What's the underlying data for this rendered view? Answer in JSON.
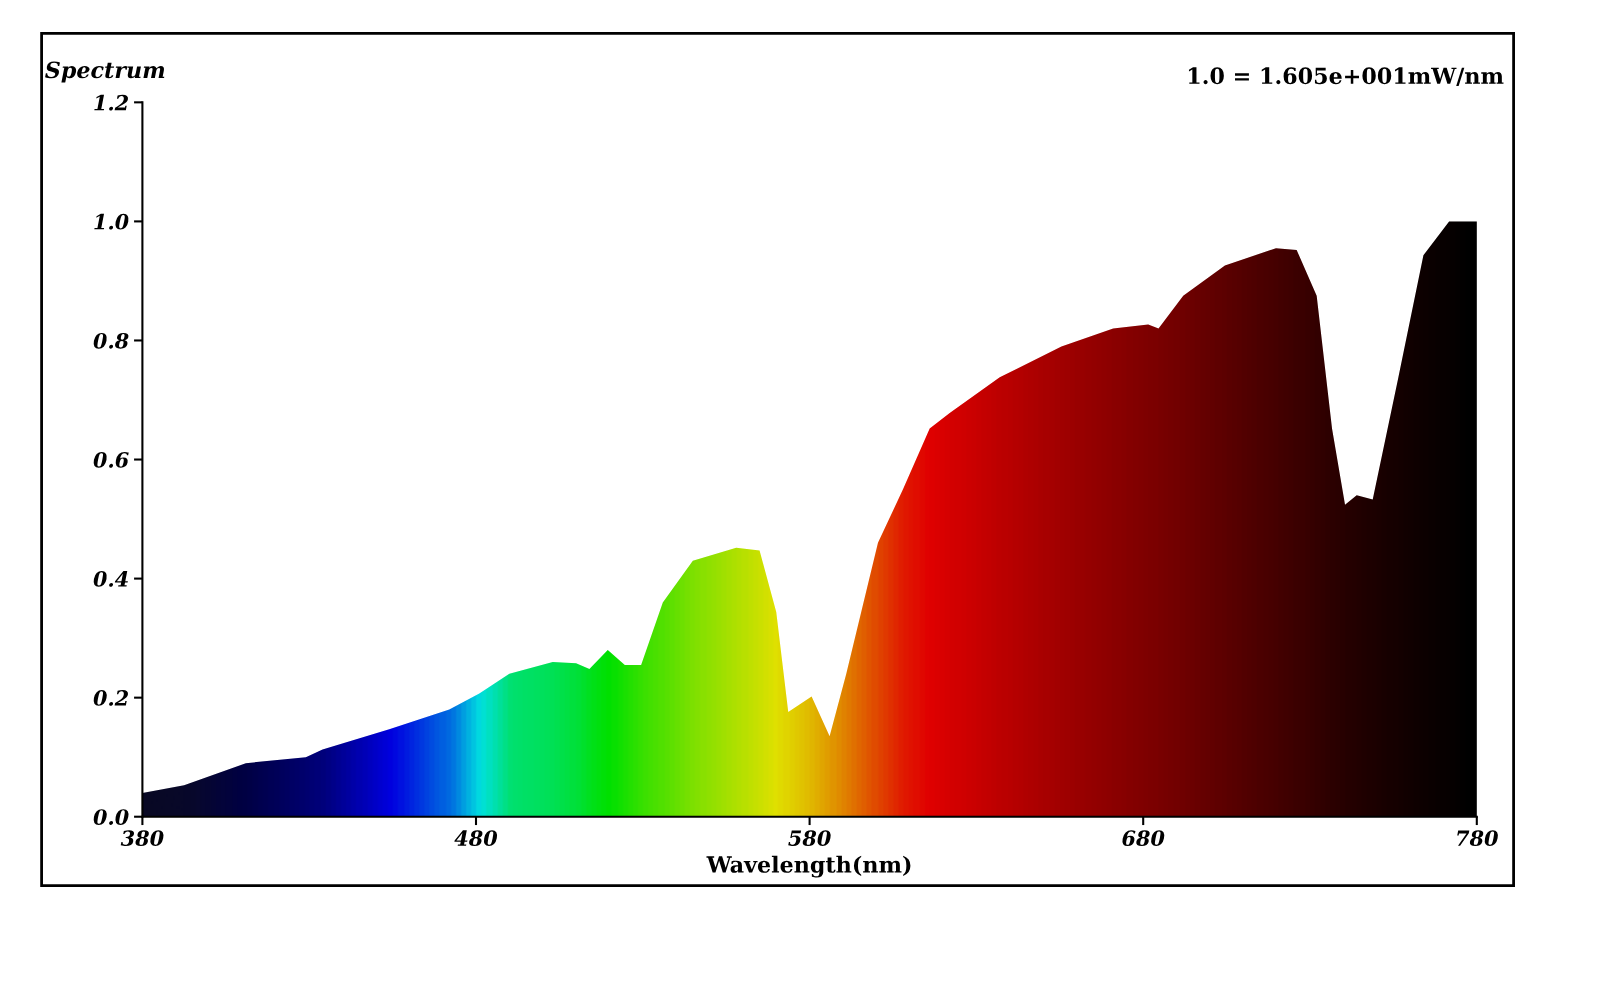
{
  "chart_data": {
    "type": "area",
    "ylabel": "Spectrum",
    "xlabel": "Wavelength(nm)",
    "annotations": [
      "1.0 = 1.605e+001mW/nm"
    ],
    "x": [
      380,
      392.5,
      411,
      429,
      434,
      454,
      472,
      481,
      490,
      503,
      510,
      514,
      519.5,
      524.6,
      529.5,
      536,
      545,
      558,
      565,
      570,
      573.6,
      580.6,
      586,
      591,
      600.5,
      608,
      616,
      622,
      637,
      655.5,
      671,
      681.5,
      684.6,
      692,
      704.5,
      719.8,
      726,
      732,
      736.6,
      740.5,
      744,
      748.8,
      756.5,
      764,
      771.7,
      780
    ],
    "series": [
      {
        "values": [
          0.04,
          0.053,
          0.09,
          0.1,
          0.113,
          0.147,
          0.18,
          0.207,
          0.24,
          0.26,
          0.258,
          0.248,
          0.28,
          0.255,
          0.255,
          0.36,
          0.43,
          0.452,
          0.447,
          0.344,
          0.176,
          0.202,
          0.135,
          0.24,
          0.46,
          0.55,
          0.652,
          0.678,
          0.738,
          0.79,
          0.82,
          0.827,
          0.82,
          0.875,
          0.926,
          0.955,
          0.952,
          0.875,
          0.652,
          0.524,
          0.54,
          0.533,
          0.738,
          0.943,
          1.0,
          1.0
        ],
        "colors": [
          "#0a0a2a",
          "#0a0a30",
          "#000050",
          "#000080",
          "#000090",
          "#0000ff",
          "#0080ff",
          "#00ffff",
          "#00ff80",
          "#00ff60",
          "#00ff40",
          "#00ff20",
          "#00ff00",
          "#20ff00",
          "#40ff00",
          "#60ff00",
          "#90ff00",
          "#c8ff00",
          "#e8ff00",
          "#ffff00",
          "#fff000",
          "#ffd000",
          "#ffb000",
          "#ff9000",
          "#ff5000",
          "#ff2000",
          "#ff0000",
          "#f40000",
          "#d80000",
          "#b80000",
          "#a00000",
          "#900000",
          "#8c0000",
          "#800000",
          "#6a0000",
          "#500000",
          "#460000",
          "#3c0000",
          "#340000",
          "#2e0000",
          "#280000",
          "#220000",
          "#180000",
          "#100000",
          "#080000",
          "#000000"
        ]
      }
    ],
    "xlim": [
      380,
      780
    ],
    "xticks": [
      380,
      480,
      580,
      680,
      780
    ],
    "ylim": [
      0,
      1.2
    ],
    "yticks": [
      {
        "value": 0,
        "label": "0.0"
      },
      {
        "value": 0.2,
        "label": "0.2"
      },
      {
        "value": 0.4,
        "label": "0.4"
      },
      {
        "value": 0.6,
        "label": "0.6"
      },
      {
        "value": 0.8,
        "label": "0.8"
      },
      {
        "value": 1.0,
        "label": "1.0"
      },
      {
        "value": 1.2,
        "label": "1.2"
      }
    ],
    "grid": false,
    "legend": false
  }
}
